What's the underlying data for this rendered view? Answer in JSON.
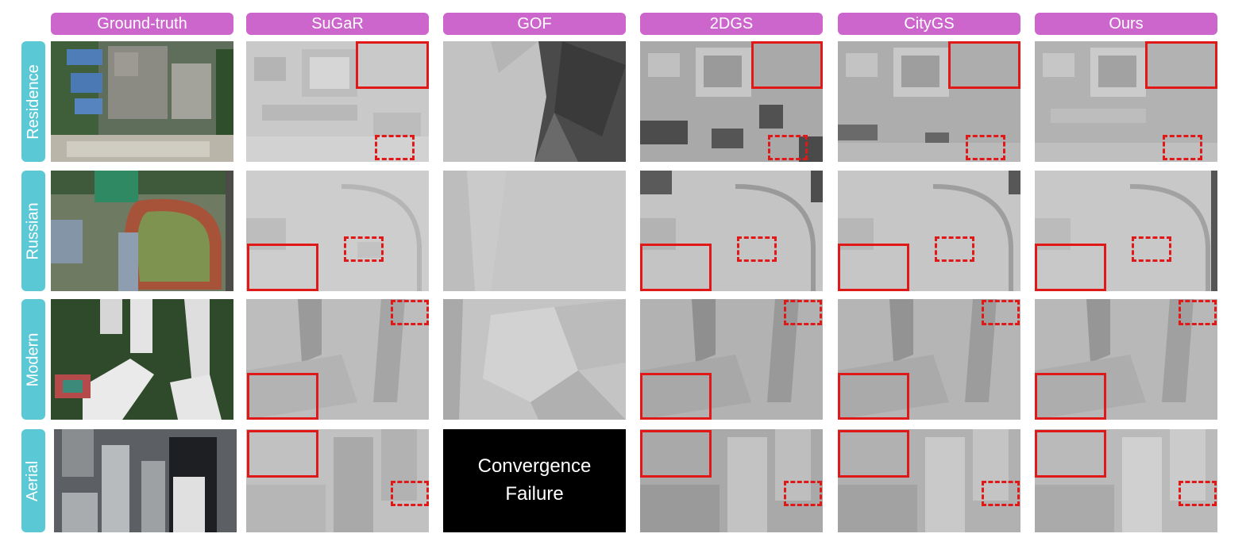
{
  "columns": [
    {
      "label": "Ground-truth"
    },
    {
      "label": "SuGaR"
    },
    {
      "label": "GOF"
    },
    {
      "label": "2DGS"
    },
    {
      "label": "CityGS"
    },
    {
      "label": "Ours"
    }
  ],
  "rows": [
    {
      "label": "Residence"
    },
    {
      "label": "Russian"
    },
    {
      "label": "Modern"
    },
    {
      "label": "Aerial"
    }
  ],
  "failure": {
    "line1": "Convergence",
    "line2": "Failure"
  },
  "colors": {
    "header_bg": "#cc66cc",
    "row_label_bg": "#5bc8d6",
    "highlight_box": "#e01818"
  }
}
